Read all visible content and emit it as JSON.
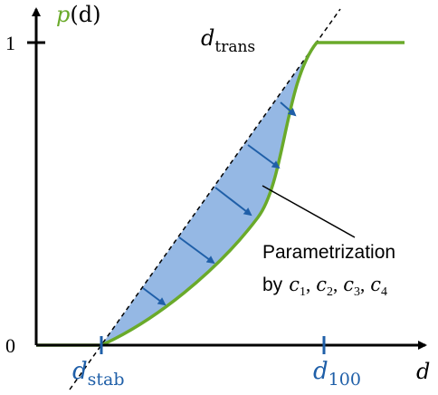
{
  "y_axis": {
    "symbol": "p",
    "argument": "(d)",
    "tick_top": "1",
    "tick_bottom": "0"
  },
  "x_axis": {
    "symbol": "d"
  },
  "markers": [
    {
      "symbol": "d",
      "subscript": "stab"
    },
    {
      "symbol": "d",
      "subscript": "100"
    }
  ],
  "line_label": {
    "symbol": "d",
    "subscript": "trans"
  },
  "annotation": {
    "line1": "Parametrization",
    "prefix": "by",
    "separator": ",",
    "params": [
      {
        "symbol": "c",
        "subscript": "1"
      },
      {
        "symbol": "c",
        "subscript": "2"
      },
      {
        "symbol": "c",
        "subscript": "3"
      },
      {
        "symbol": "c",
        "subscript": "4"
      }
    ]
  }
}
